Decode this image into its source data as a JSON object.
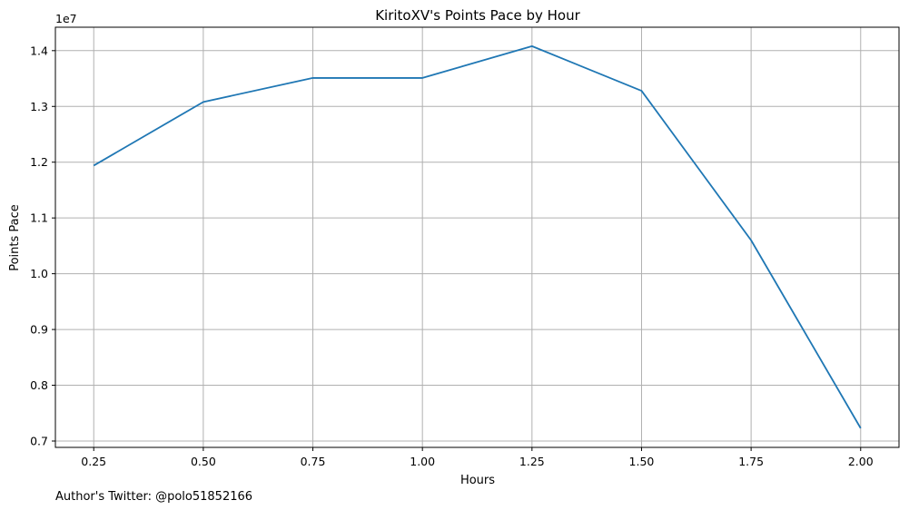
{
  "chart_data": {
    "type": "line",
    "title": "KiritoXV's Points Pace by Hour",
    "xlabel": "Hours",
    "ylabel": "Points Pace",
    "y_exponent_label": "1e7",
    "x": [
      0.25,
      0.5,
      0.75,
      1.0,
      1.25,
      1.5,
      1.75,
      2.0
    ],
    "series": [
      {
        "values": [
          11940000,
          13080000,
          13510000,
          13510000,
          14080000,
          13280000,
          10600000,
          7230000
        ],
        "color": "#1f77b4"
      }
    ],
    "xlim": [
      0.1625,
      2.0875
    ],
    "ylim": [
      6886000.0,
      14420000.0
    ],
    "x_ticks": [
      0.25,
      0.5,
      0.75,
      1.0,
      1.25,
      1.5,
      1.75,
      2.0
    ],
    "x_tick_labels": [
      "0.25",
      "0.50",
      "0.75",
      "1.00",
      "1.25",
      "1.50",
      "1.75",
      "2.00"
    ],
    "y_ticks": [
      7000000,
      8000000,
      9000000,
      10000000,
      11000000,
      12000000,
      13000000,
      14000000
    ],
    "y_tick_labels": [
      "0.7",
      "0.8",
      "0.9",
      "1.0",
      "1.1",
      "1.2",
      "1.3",
      "1.4"
    ],
    "grid": true,
    "legend": "none",
    "footer": "Author's Twitter: @polo51852166"
  }
}
